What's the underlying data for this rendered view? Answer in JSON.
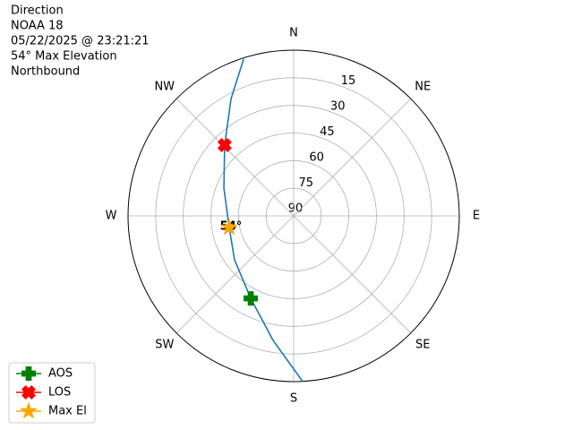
{
  "chart_data": {
    "type": "polar",
    "title": "Direction",
    "info": [
      "NOAA 18",
      "05/22/2025 @ 23:21:21",
      "54° Max Elevation",
      "Northbound"
    ],
    "xticks": [
      {
        "value": 0,
        "label": "N"
      },
      {
        "value": 45,
        "label": "NE"
      },
      {
        "value": 90,
        "label": "E"
      },
      {
        "value": 135,
        "label": "SE"
      },
      {
        "value": 180,
        "label": "S"
      },
      {
        "value": 225,
        "label": "SW"
      },
      {
        "value": 270,
        "label": "W"
      },
      {
        "value": 315,
        "label": "NW"
      }
    ],
    "rlim": [
      90,
      0
    ],
    "rticks": [
      15,
      30,
      45,
      60,
      75,
      90
    ],
    "grid": true,
    "legend": "lower left",
    "series": [
      {
        "kind": "line",
        "color": "#1f77b4",
        "theta": [
          176.9,
          189.4,
          207.5,
          233.4,
          259.8,
          291.7,
          315.7,
          331.9,
          342.3
        ],
        "values": [
          0,
          21.5,
          39.5,
          50,
          54.4,
          49.2,
          36.3,
          17.8,
          0.6
        ]
      },
      {
        "kind": "marker",
        "name": "AOS",
        "color": "green",
        "marker": "plus",
        "theta": [
          207.5
        ],
        "values": [
          39.5
        ]
      },
      {
        "kind": "marker",
        "name": "LOS",
        "color": "red",
        "marker": "x",
        "theta": [
          315.7
        ],
        "values": [
          36.3
        ]
      },
      {
        "kind": "marker",
        "name": "Max El",
        "color": "orange",
        "marker": "star",
        "theta": [
          259.8
        ],
        "values": [
          54.4
        ]
      }
    ],
    "annotation": {
      "text": "54°",
      "theta": 259.8,
      "value": 54.4
    }
  }
}
